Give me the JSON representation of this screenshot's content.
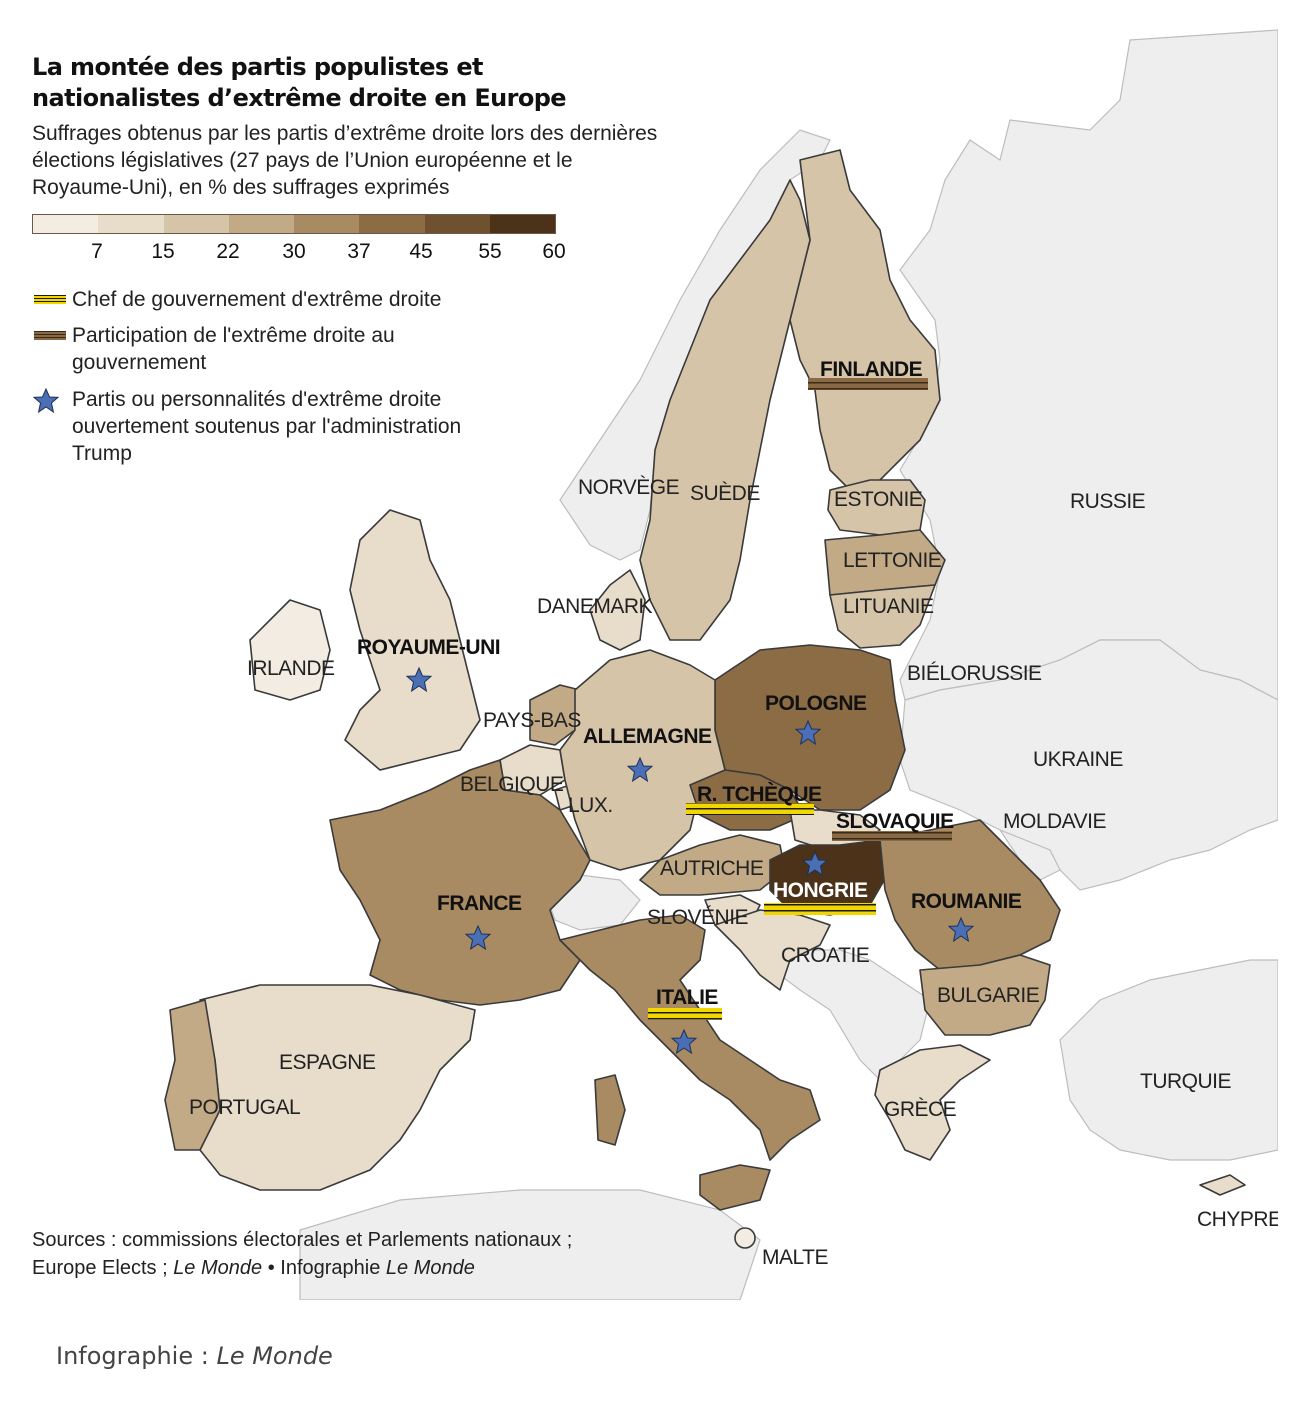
{
  "title": "La montée des partis populistes et nationalistes d’extrême droite en Europe",
  "subtitle": "Suffrages obtenus par les partis d’extrême droite lors des dernières élections législatives (27 pays de l’Union européenne et le Royaume-Uni), en % des suffrages exprimés",
  "scale": {
    "colors": [
      "#f3ece2",
      "#e8dccb",
      "#d6c4a9",
      "#c3aa86",
      "#a88b62",
      "#8c6c45",
      "#70512f",
      "#4b3219"
    ],
    "ticks": [
      "7",
      "15",
      "22",
      "30",
      "37",
      "45",
      "55",
      "60"
    ]
  },
  "legend": {
    "head_of_government": "Chef de gouvernement d'extrême droite",
    "participation": "Participation de l'extrême droite au gouvernement",
    "trump_support": "Partis ou personnalités d'extrême droite ouvertement soutenus par l'administration Trump"
  },
  "colors": {
    "non_eu_land": "#eeeeee",
    "border": "#3a3a3a",
    "star": "#4a6fb5",
    "head_stripe": "#f2d600",
    "participation_stripe": "#8a6a45"
  },
  "countries": [
    {
      "label": "FINLANDE",
      "bold": true,
      "stripe": "participation",
      "star": false
    },
    {
      "label": "NORVÈGE",
      "bold": false,
      "stripe": null,
      "star": false
    },
    {
      "label": "SUÈDE",
      "bold": false,
      "stripe": null,
      "star": false
    },
    {
      "label": "ESTONIE",
      "bold": false,
      "stripe": null,
      "star": false
    },
    {
      "label": "RUSSIE",
      "bold": false,
      "stripe": null,
      "star": false
    },
    {
      "label": "LETTONIE",
      "bold": false,
      "stripe": null,
      "star": false
    },
    {
      "label": "LITUANIE",
      "bold": false,
      "stripe": null,
      "star": false
    },
    {
      "label": "DANEMARK",
      "bold": false,
      "stripe": null,
      "star": false
    },
    {
      "label": "ROYAUME-UNI",
      "bold": true,
      "stripe": null,
      "star": true
    },
    {
      "label": "IRLANDE",
      "bold": false,
      "stripe": null,
      "star": false
    },
    {
      "label": "BIÉLORUSSIE",
      "bold": false,
      "stripe": null,
      "star": false
    },
    {
      "label": "POLOGNE",
      "bold": true,
      "stripe": null,
      "star": true
    },
    {
      "label": "PAYS-BAS",
      "bold": false,
      "stripe": null,
      "star": false
    },
    {
      "label": "ALLEMAGNE",
      "bold": true,
      "stripe": null,
      "star": true
    },
    {
      "label": "UKRAINE",
      "bold": false,
      "stripe": null,
      "star": false
    },
    {
      "label": "BELGIQUE",
      "bold": false,
      "stripe": null,
      "star": false
    },
    {
      "label": "R. TCHÈQUE",
      "bold": true,
      "stripe": "head",
      "star": false
    },
    {
      "label": "LUX.",
      "bold": false,
      "stripe": null,
      "star": false
    },
    {
      "label": "SLOVAQUIE",
      "bold": true,
      "stripe": "participation",
      "star": false
    },
    {
      "label": "MOLDAVIE",
      "bold": false,
      "stripe": null,
      "star": false
    },
    {
      "label": "AUTRICHE",
      "bold": false,
      "stripe": null,
      "star": false
    },
    {
      "label": "HONGRIE",
      "bold": true,
      "stripe": "head",
      "star": true
    },
    {
      "label": "FRANCE",
      "bold": true,
      "stripe": null,
      "star": true
    },
    {
      "label": "ROUMANIE",
      "bold": true,
      "stripe": null,
      "star": true
    },
    {
      "label": "SLOVÉNIE",
      "bold": false,
      "stripe": null,
      "star": false
    },
    {
      "label": "CROATIE",
      "bold": false,
      "stripe": null,
      "star": false
    },
    {
      "label": "ITALIE",
      "bold": true,
      "stripe": "head",
      "star": true
    },
    {
      "label": "BULGARIE",
      "bold": false,
      "stripe": null,
      "star": false
    },
    {
      "label": "ESPAGNE",
      "bold": false,
      "stripe": null,
      "star": false
    },
    {
      "label": "TURQUIE",
      "bold": false,
      "stripe": null,
      "star": false
    },
    {
      "label": "PORTUGAL",
      "bold": false,
      "stripe": null,
      "star": false
    },
    {
      "label": "GRÈCE",
      "bold": false,
      "stripe": null,
      "star": false
    },
    {
      "label": "CHYPRE",
      "bold": false,
      "stripe": null,
      "star": false
    },
    {
      "label": "MALTE",
      "bold": false,
      "stripe": null,
      "star": false
    }
  ],
  "sources": {
    "line1": "Sources : commissions électorales et Parlements nationaux ;",
    "line2_a": "Europe Elects ; ",
    "line2_b": "Le Monde",
    "line2_c": " • Infographie ",
    "line2_d": "Le Monde"
  },
  "credit": {
    "prefix": "Infographie : ",
    "name": "Le Monde"
  }
}
